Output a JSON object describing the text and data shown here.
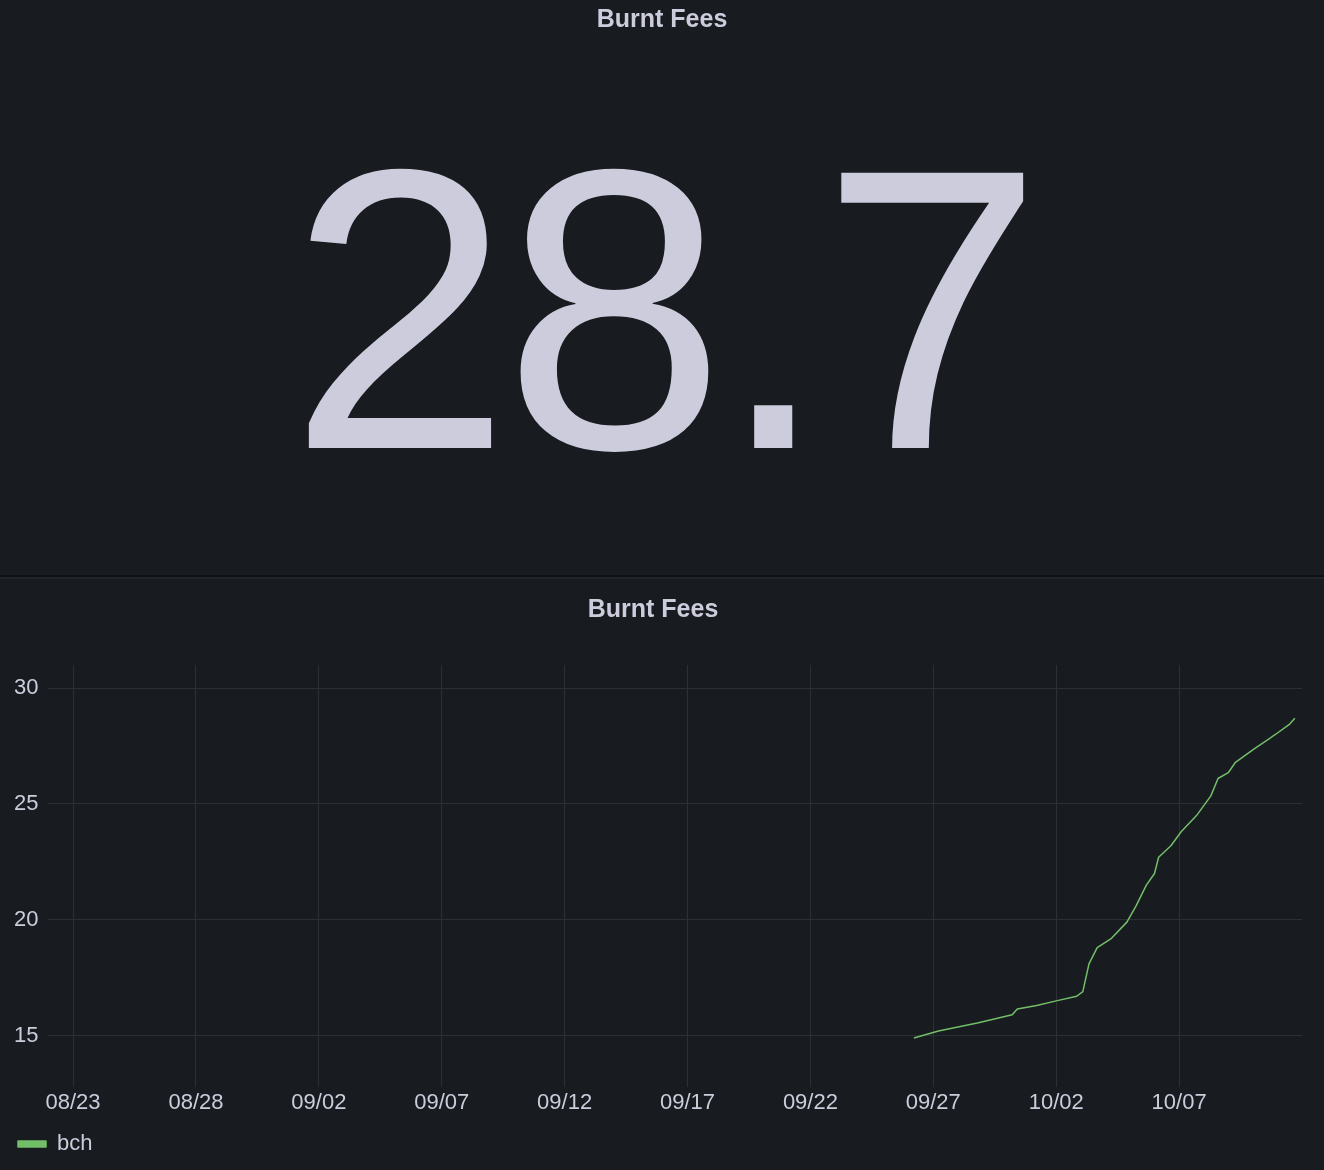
{
  "chart_data": [
    {
      "type": "other",
      "title": "Burnt Fees",
      "annotations": [
        "28.7"
      ]
    },
    {
      "type": "line",
      "title": "Burnt Fees",
      "x": [
        "--09-26T05:00",
        "--09-27T05:00",
        "--09-28T19:00",
        "--09-30T05:00",
        "--09-30T10:00",
        "--10-01T05:00",
        "--10-02T00:00",
        "--10-02T20:00",
        "--10-03T02:00",
        "--10-03T08:00",
        "--10-03T16:00",
        "--10-04T06:00",
        "--10-04T21:00",
        "--10-05T06:00",
        "--10-05T16:00",
        "--10-06T00:00",
        "--10-06T04:00",
        "--10-06T16:00",
        "--10-07T02:00",
        "--10-07T17:00",
        "--10-08T07:00",
        "--10-08T14:00",
        "--10-09T00:00",
        "--10-09T07:00",
        "--10-10T02:00",
        "--10-10T22:00",
        "--10-11T12:00",
        "--10-11T17:00"
      ],
      "series": [
        {
          "name": "bch",
          "color": "#73bf69",
          "values": [
            14.9,
            15.2,
            15.55,
            15.9,
            16.15,
            16.3,
            16.5,
            16.7,
            16.9,
            18.1,
            18.8,
            19.2,
            19.9,
            20.6,
            21.5,
            22.0,
            22.7,
            23.2,
            23.8,
            24.5,
            25.35,
            26.1,
            26.35,
            26.8,
            27.4,
            28.0,
            28.45,
            28.7
          ]
        }
      ],
      "xlim": [
        "--08-22",
        "--10-12"
      ],
      "xticks": [
        {
          "value": "--08-23",
          "label": "08/23"
        },
        {
          "value": "--08-28",
          "label": "08/28"
        },
        {
          "value": "--09-02",
          "label": "09/02"
        },
        {
          "value": "--09-07",
          "label": "09/07"
        },
        {
          "value": "--09-12",
          "label": "09/12"
        },
        {
          "value": "--09-17",
          "label": "09/17"
        },
        {
          "value": "--09-22",
          "label": "09/22"
        },
        {
          "value": "--09-27",
          "label": "09/27"
        },
        {
          "value": "--10-02",
          "label": "10/02"
        },
        {
          "value": "--10-07",
          "label": "10/07"
        }
      ],
      "ylim": [
        12.8,
        31
      ],
      "yticks": [
        15,
        20,
        25,
        30
      ],
      "grid": true,
      "legend": "bottom",
      "marker": "none",
      "line_style": "solid"
    }
  ]
}
